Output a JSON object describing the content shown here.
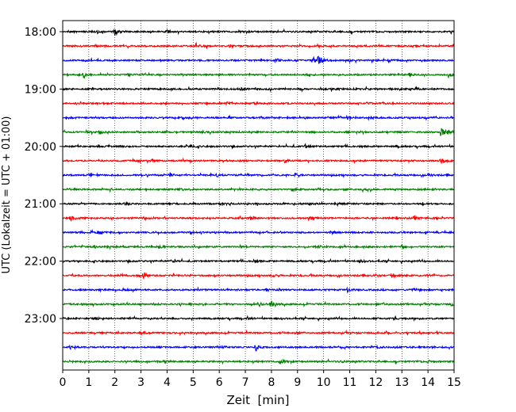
{
  "chart_data": {
    "type": "line",
    "title": "",
    "xlabel": "Zeit  [min]",
    "ylabel": "UTC (Lokalzeit = UTC + 01:00)",
    "xlim": [
      0,
      15
    ],
    "x_ticks": [
      "0",
      "1",
      "2",
      "3",
      "4",
      "5",
      "6",
      "7",
      "8",
      "9",
      "10",
      "11",
      "12",
      "13",
      "14",
      "15"
    ],
    "y_tick_labels": [
      "18:00",
      "19:00",
      "20:00",
      "21:00",
      "22:00",
      "23:00"
    ],
    "y_tick_rows": [
      0,
      4,
      8,
      12,
      16,
      20
    ],
    "trace_interval_min": 15,
    "trace_count": 24,
    "trace_colors": [
      "#000000",
      "#ff0000",
      "#0000ff",
      "#008000"
    ],
    "grid": {
      "x": true,
      "style": "dotted"
    },
    "series": [
      {
        "start": "18:00",
        "color": "#000000",
        "events": [
          [
            1.3,
            0.5
          ],
          [
            2.0,
            1.0
          ],
          [
            4.0,
            0.4
          ]
        ]
      },
      {
        "start": "18:15",
        "color": "#ff0000",
        "events": [
          [
            5.1,
            0.9
          ],
          [
            6.4,
            0.4
          ],
          [
            15.0,
            0.8
          ]
        ]
      },
      {
        "start": "18:30",
        "color": "#0000ff",
        "events": [
          [
            8.2,
            0.4
          ],
          [
            9.6,
            0.8
          ],
          [
            9.8,
            1.6
          ],
          [
            12.5,
            0.4
          ]
        ]
      },
      {
        "start": "18:45",
        "color": "#008000",
        "events": [
          [
            0.8,
            0.9
          ],
          [
            2.5,
            0.4
          ],
          [
            9.3,
            0.4
          ],
          [
            13.3,
            0.6
          ],
          [
            14.8,
            0.5
          ]
        ]
      },
      {
        "start": "19:00",
        "color": "#000000",
        "events": [
          [
            6.8,
            0.3
          ],
          [
            10.5,
            0.3
          ],
          [
            13.5,
            0.3
          ]
        ]
      },
      {
        "start": "19:15",
        "color": "#ff0000",
        "events": [
          [
            0.5,
            0.3
          ],
          [
            6.3,
            0.4
          ],
          [
            7.3,
            0.4
          ],
          [
            11.7,
            0.3
          ]
        ]
      },
      {
        "start": "19:30",
        "color": "#0000ff",
        "events": [
          [
            4.6,
            0.3
          ],
          [
            7.6,
            0.3
          ],
          [
            10.9,
            0.6
          ],
          [
            11.7,
            0.4
          ]
        ]
      },
      {
        "start": "19:45",
        "color": "#008000",
        "events": [
          [
            1.4,
            0.6
          ],
          [
            5.3,
            0.4
          ],
          [
            14.5,
            1.9
          ],
          [
            14.8,
            0.7
          ]
        ]
      },
      {
        "start": "20:00",
        "color": "#000000",
        "events": [
          [
            4.9,
            0.4
          ],
          [
            9.3,
            0.5
          ],
          [
            12.8,
            0.3
          ]
        ]
      },
      {
        "start": "20:15",
        "color": "#ff0000",
        "events": [
          [
            3.4,
            0.3
          ],
          [
            8.5,
            0.6
          ],
          [
            14.5,
            1.0
          ]
        ]
      },
      {
        "start": "20:30",
        "color": "#0000ff",
        "events": [
          [
            1.0,
            0.3
          ],
          [
            4.1,
            0.5
          ],
          [
            5.9,
            0.5
          ],
          [
            8.9,
            0.4
          ],
          [
            14.0,
            0.3
          ]
        ]
      },
      {
        "start": "20:45",
        "color": "#008000",
        "events": [
          [
            4.5,
            0.4
          ],
          [
            8.8,
            0.3
          ],
          [
            11.5,
            0.4
          ]
        ]
      },
      {
        "start": "21:00",
        "color": "#000000",
        "events": [
          [
            2.4,
            0.3
          ],
          [
            6.0,
            0.3
          ],
          [
            9.4,
            0.3
          ],
          [
            13.8,
            0.3
          ]
        ]
      },
      {
        "start": "21:15",
        "color": "#ff0000",
        "events": [
          [
            0.3,
            0.9
          ],
          [
            7.2,
            0.4
          ],
          [
            9.5,
            0.4
          ],
          [
            13.5,
            0.4
          ]
        ]
      },
      {
        "start": "21:30",
        "color": "#0000ff",
        "events": [
          [
            1.4,
            0.5
          ],
          [
            4.9,
            0.4
          ],
          [
            10.3,
            0.5
          ],
          [
            13.9,
            0.3
          ]
        ]
      },
      {
        "start": "21:45",
        "color": "#008000",
        "events": [
          [
            3.7,
            0.3
          ],
          [
            9.7,
            0.4
          ],
          [
            13.0,
            0.6
          ]
        ]
      },
      {
        "start": "22:00",
        "color": "#000000",
        "events": [
          [
            4.2,
            0.5
          ],
          [
            7.3,
            0.3
          ],
          [
            11.4,
            0.3
          ]
        ]
      },
      {
        "start": "22:15",
        "color": "#ff0000",
        "events": [
          [
            3.1,
            0.9
          ],
          [
            8.1,
            0.4
          ],
          [
            12.6,
            0.8
          ],
          [
            14.0,
            0.3
          ]
        ]
      },
      {
        "start": "22:30",
        "color": "#0000ff",
        "events": [
          [
            2.3,
            0.3
          ],
          [
            7.8,
            0.3
          ],
          [
            10.9,
            0.7
          ],
          [
            13.3,
            0.3
          ]
        ]
      },
      {
        "start": "22:45",
        "color": "#008000",
        "events": [
          [
            3.5,
            0.3
          ],
          [
            7.5,
            0.8
          ],
          [
            8.0,
            1.0
          ],
          [
            12.3,
            0.3
          ],
          [
            14.9,
            0.5
          ]
        ]
      },
      {
        "start": "23:00",
        "color": "#000000",
        "events": [
          [
            1.2,
            0.3
          ],
          [
            7.1,
            0.3
          ],
          [
            12.7,
            0.3
          ]
        ]
      },
      {
        "start": "23:15",
        "color": "#ff0000",
        "events": [
          [
            3.0,
            0.3
          ],
          [
            8.9,
            0.3
          ],
          [
            12.4,
            0.3
          ]
        ]
      },
      {
        "start": "23:30",
        "color": "#0000ff",
        "events": [
          [
            0.3,
            0.4
          ],
          [
            6.1,
            0.3
          ],
          [
            7.4,
            0.9
          ],
          [
            12.0,
            0.3
          ]
        ]
      },
      {
        "start": "23:45",
        "color": "#008000",
        "events": [
          [
            3.9,
            0.4
          ],
          [
            8.3,
            0.7
          ],
          [
            10.7,
            0.3
          ],
          [
            14.0,
            0.3
          ]
        ]
      }
    ]
  }
}
